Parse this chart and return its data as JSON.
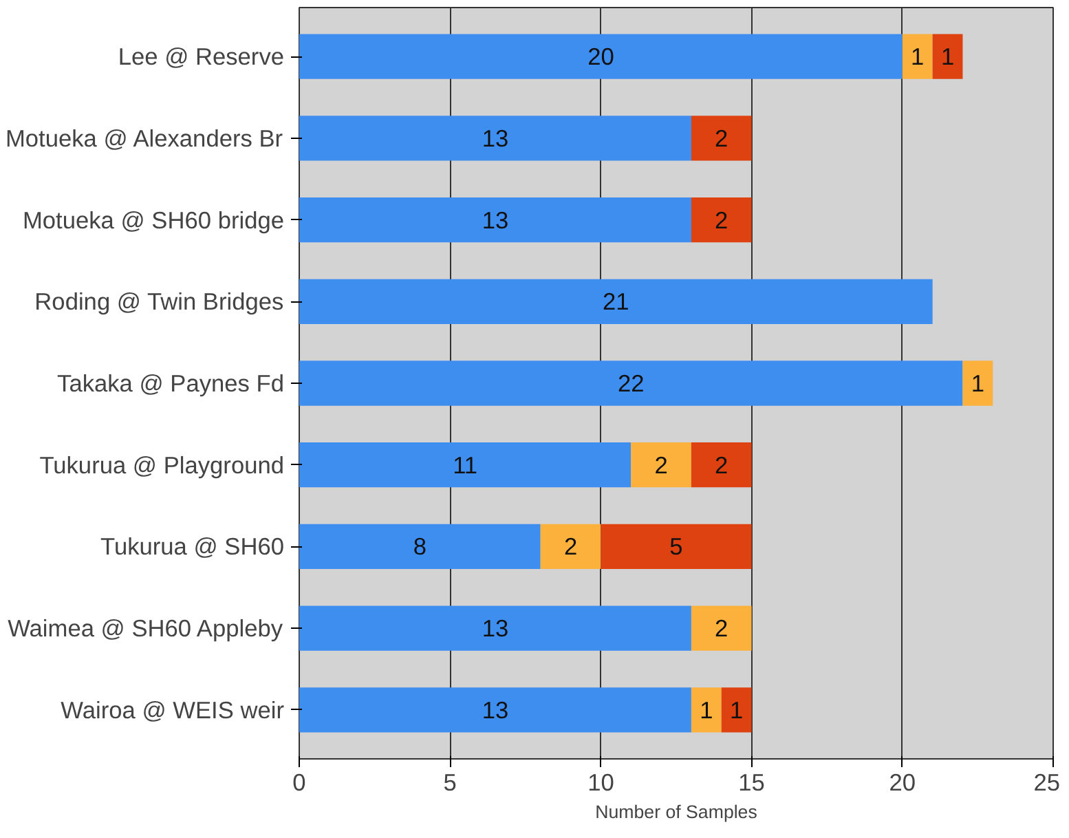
{
  "chart_data": {
    "type": "bar",
    "orientation": "horizontal",
    "stacked": true,
    "xlabel": "Number of Samples",
    "categories": [
      "Lee @ Reserve",
      "Motueka @ Alexanders Br",
      "Motueka @ SH60 bridge",
      "Roding @ Twin Bridges",
      "Takaka @ Paynes Fd",
      "Tukurua @ Playground",
      "Tukurua @ SH60",
      "Waimea @ SH60 Appleby",
      "Wairoa @ WEIS weir"
    ],
    "series": [
      {
        "color": "#3e8ef0",
        "values": [
          20,
          13,
          13,
          21,
          22,
          11,
          8,
          13,
          13
        ]
      },
      {
        "color": "#fbb13c",
        "values": [
          1,
          null,
          null,
          null,
          1,
          2,
          2,
          2,
          1
        ]
      },
      {
        "color": "#dd4210",
        "values": [
          1,
          2,
          2,
          null,
          null,
          2,
          5,
          null,
          1
        ]
      }
    ],
    "xlim": [
      0,
      25
    ],
    "xticks": [
      0,
      5,
      10,
      15,
      20,
      25
    ],
    "grid": "x",
    "data_labels": true
  }
}
